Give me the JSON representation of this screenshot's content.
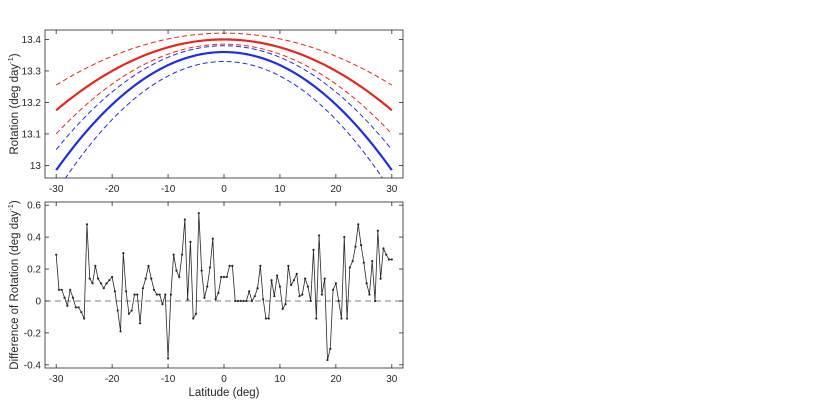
{
  "chart_data": [
    {
      "type": "line",
      "title": "",
      "xlabel": "",
      "ylabel": "Rotation (deg day",
      "ylabel_sup": "-1",
      "ylabel_close": ")",
      "xlim": [
        -32,
        32
      ],
      "ylim": [
        12.96,
        13.43
      ],
      "xticks": [
        -30,
        -20,
        -10,
        0,
        10,
        20,
        30
      ],
      "yticks": [
        13,
        13.1,
        13.2,
        13.3,
        13.4
      ],
      "ytick_labels": [
        "13",
        "13.1",
        "13.2",
        "13.3",
        "13.4"
      ],
      "grid": false,
      "colors": {
        "red": "#e8251f",
        "blue": "#1f2ee0"
      },
      "curves": [
        {
          "color": "red",
          "style": "solid",
          "center": 13.4,
          "edge": 13.175
        },
        {
          "color": "red",
          "style": "dashed",
          "center": 13.42,
          "edge": 13.255
        },
        {
          "color": "red",
          "style": "dashed",
          "center": 13.385,
          "edge": 13.1
        },
        {
          "color": "blue",
          "style": "solid",
          "center": 13.36,
          "edge": 12.985
        },
        {
          "color": "blue",
          "style": "dashed",
          "center": 13.38,
          "edge": 13.05
        },
        {
          "color": "blue",
          "style": "dashed",
          "center": 13.33,
          "edge": 12.915
        }
      ]
    },
    {
      "type": "line",
      "title": "",
      "xlabel": "Latitude (deg)",
      "ylabel": "Difference of Rotation (deg day",
      "ylabel_sup": "-1",
      "ylabel_close": ")",
      "xlim": [
        -32,
        32
      ],
      "ylim": [
        -0.42,
        0.62
      ],
      "xticks": [
        -30,
        -20,
        -10,
        0,
        10,
        20,
        30
      ],
      "yticks": [
        -0.4,
        -0.2,
        0,
        0.2,
        0.4,
        0.6
      ],
      "ytick_labels": [
        "-0.4",
        "-0.2",
        "0",
        "0.2",
        "0.4",
        "0.6"
      ],
      "grid": false,
      "reference_line": 0,
      "colors": {
        "line": "#262626",
        "reference": "#808080"
      },
      "series": [
        {
          "x": [
            -30,
            -29.5,
            -29,
            -28.5,
            -28,
            -27.5,
            -27,
            -26.5,
            -26,
            -25.5,
            -25,
            -24.5,
            -24,
            -23.5,
            -23,
            -22.5,
            -22,
            -21.5,
            -21,
            -20.5,
            -20,
            -19.5,
            -19,
            -18.5,
            -18,
            -17.5,
            -17,
            -16.5,
            -16,
            -15.5,
            -15,
            -14.5,
            -14,
            -13.5,
            -13,
            -12.5,
            -12,
            -11.5,
            -11,
            -10.5,
            -10,
            -9.5,
            -9,
            -8.5,
            -8,
            -7.5,
            -7,
            -6.5,
            -6,
            -5.5,
            -5,
            -4.5,
            -4,
            -3.5,
            -3,
            -2.5,
            -2,
            -1.5,
            -1,
            -0.5,
            0,
            0.5,
            1,
            1.5,
            2,
            2.5,
            3,
            3.5,
            4,
            4.5,
            5,
            5.5,
            6,
            6.5,
            7,
            7.5,
            8,
            8.5,
            9,
            9.5,
            10,
            10.5,
            11,
            11.5,
            12,
            12.5,
            13,
            13.5,
            14,
            14.5,
            15,
            15.5,
            16,
            16.5,
            17,
            17.5,
            18,
            18.5,
            19,
            19.5,
            20,
            20.5,
            21,
            21.5,
            22,
            22.5,
            23,
            23.5,
            24,
            24.5,
            25,
            25.5,
            26,
            26.5,
            27,
            27.5,
            28,
            28.5,
            29,
            29.5,
            30
          ],
          "y": [
            0.29,
            0.07,
            0.07,
            0.02,
            -0.03,
            0.07,
            0.02,
            -0.04,
            -0.04,
            -0.07,
            -0.11,
            0.48,
            0.14,
            0.11,
            0.22,
            0.14,
            0.11,
            0.08,
            0.11,
            0.13,
            0.15,
            0.06,
            -0.06,
            -0.19,
            0.3,
            0.06,
            -0.08,
            -0.06,
            0.04,
            0.04,
            -0.14,
            0.08,
            0.14,
            0.22,
            0.14,
            0.07,
            0.04,
            0.04,
            -0.02,
            0.04,
            -0.36,
            0.04,
            0.29,
            0.19,
            0.15,
            0.29,
            0.51,
            0.01,
            0.37,
            -0.11,
            -0.08,
            0.55,
            0.19,
            0.02,
            0.09,
            0.21,
            0.39,
            0.01,
            0.05,
            0.15,
            0.15,
            0.15,
            0.22,
            0.22,
            0.0,
            0.0,
            0.0,
            0.0,
            0.0,
            0.06,
            0.0,
            0.03,
            0.08,
            0.22,
            0.01,
            -0.11,
            -0.11,
            0.13,
            0.03,
            0.16,
            0.09,
            -0.05,
            -0.02,
            0.22,
            0.1,
            0.13,
            0.17,
            0.03,
            0.04,
            0.14,
            0.09,
            0.0,
            0.32,
            -0.11,
            0.41,
            0.04,
            0.14,
            -0.37,
            -0.3,
            0.07,
            0.11,
            0.0,
            -0.11,
            0.4,
            -0.11,
            0.21,
            0.25,
            0.34,
            0.48,
            0.35,
            0.24,
            0.11,
            0.04,
            0.25,
            0.0,
            0.44,
            0.14,
            0.33,
            0.29,
            0.26,
            0.26
          ]
        }
      ]
    }
  ]
}
